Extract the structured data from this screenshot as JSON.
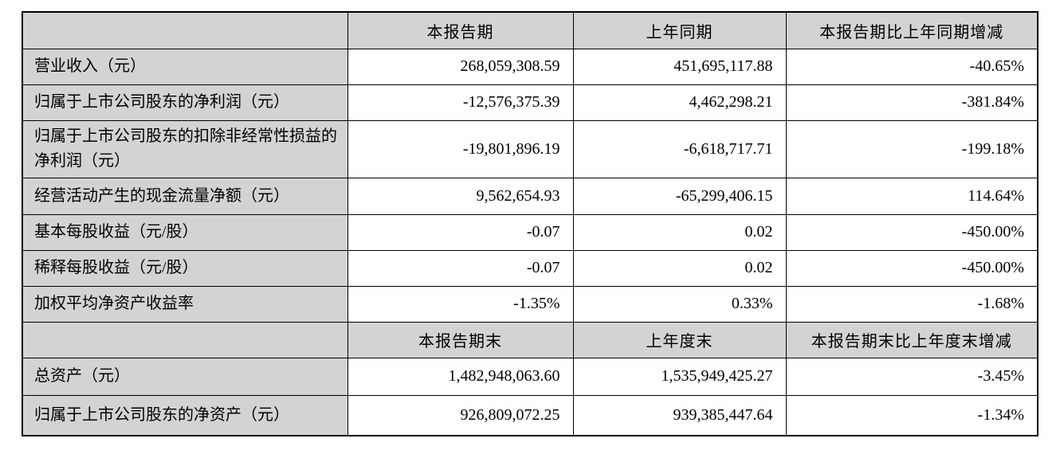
{
  "table": {
    "colors": {
      "header_background": "#d3d3d3",
      "label_column_background": "#d3d3d3",
      "data_cell_background": "#ffffff",
      "border": "#000000",
      "text": "#000000"
    },
    "header1": {
      "col1": "",
      "col2": "本报告期",
      "col3": "上年同期",
      "col4": "本报告期比上年同期增减"
    },
    "rows1": [
      {
        "label": "营业收入（元）",
        "current": "268,059,308.59",
        "prior": "451,695,117.88",
        "change": "-40.65%"
      },
      {
        "label": "归属于上市公司股东的净利润（元）",
        "current": "-12,576,375.39",
        "prior": "4,462,298.21",
        "change": "-381.84%"
      },
      {
        "label": "归属于上市公司股东的扣除非经常性损益的净利润（元）",
        "current": "-19,801,896.19",
        "prior": "-6,618,717.71",
        "change": "-199.18%"
      },
      {
        "label": "经营活动产生的现金流量净额（元）",
        "current": "9,562,654.93",
        "prior": "-65,299,406.15",
        "change": "114.64%"
      },
      {
        "label": "基本每股收益（元/股）",
        "current": "-0.07",
        "prior": "0.02",
        "change": "-450.00%"
      },
      {
        "label": "稀释每股收益（元/股）",
        "current": "-0.07",
        "prior": "0.02",
        "change": "-450.00%"
      },
      {
        "label": "加权平均净资产收益率",
        "current": "-1.35%",
        "prior": "0.33%",
        "change": "-1.68%"
      }
    ],
    "header2": {
      "col1": "",
      "col2": "本报告期末",
      "col3": "上年度末",
      "col4": "本报告期末比上年度末增减"
    },
    "rows2": [
      {
        "label": "总资产（元）",
        "current": "1,482,948,063.60",
        "prior": "1,535,949,425.27",
        "change": "-3.45%"
      },
      {
        "label": "归属于上市公司股东的净资产（元）",
        "current": "926,809,072.25",
        "prior": "939,385,447.64",
        "change": "-1.34%"
      }
    ]
  }
}
